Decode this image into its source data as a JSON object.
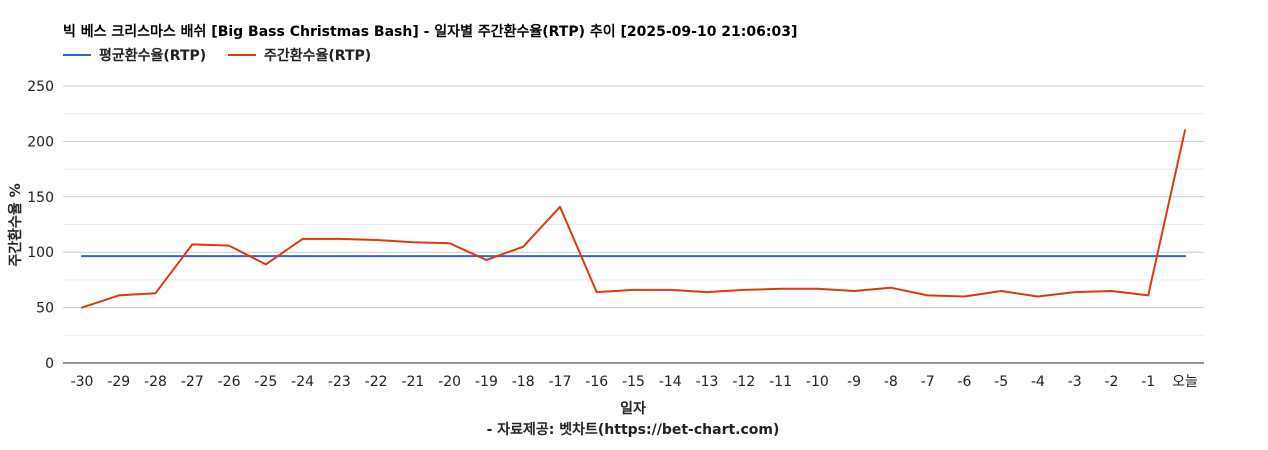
{
  "chart_data": {
    "type": "line",
    "title": "빅 베스 크리스마스 배쉬 [Big Bass Christmas Bash] - 일자별 주간환수율(RTP) 추이 [2025-09-10 21:06:03]",
    "xlabel": "일자",
    "ylabel": "주간환수율 %",
    "source": "- 자료제공: 벳차트(https://bet-chart.com)",
    "ylim": [
      0,
      250
    ],
    "yticks": [
      0,
      50,
      100,
      150,
      200,
      250
    ],
    "grid": true,
    "legend_position": "top-left",
    "categories": [
      "-30",
      "-29",
      "-28",
      "-27",
      "-26",
      "-25",
      "-24",
      "-23",
      "-22",
      "-21",
      "-20",
      "-19",
      "-18",
      "-17",
      "-16",
      "-15",
      "-14",
      "-13",
      "-12",
      "-11",
      "-10",
      "-9",
      "-8",
      "-7",
      "-6",
      "-5",
      "-4",
      "-3",
      "-2",
      "-1",
      "오늘"
    ],
    "series": [
      {
        "name": "평균환수율(RTP)",
        "color": "#3366cc",
        "values": [
          96.5,
          96.5,
          96.5,
          96.5,
          96.5,
          96.5,
          96.5,
          96.5,
          96.5,
          96.5,
          96.5,
          96.5,
          96.5,
          96.5,
          96.5,
          96.5,
          96.5,
          96.5,
          96.5,
          96.5,
          96.5,
          96.5,
          96.5,
          96.5,
          96.5,
          96.5,
          96.5,
          96.5,
          96.5,
          96.5,
          96.5
        ]
      },
      {
        "name": "주간환수율(RTP)",
        "color": "#dc3912",
        "values": [
          50,
          61,
          63,
          107,
          106,
          89,
          112,
          112,
          111,
          109,
          108,
          93,
          105,
          141,
          64,
          66,
          66,
          64,
          66,
          67,
          67,
          65,
          68,
          61,
          60,
          65,
          60,
          64,
          65,
          61,
          210
        ]
      }
    ]
  }
}
